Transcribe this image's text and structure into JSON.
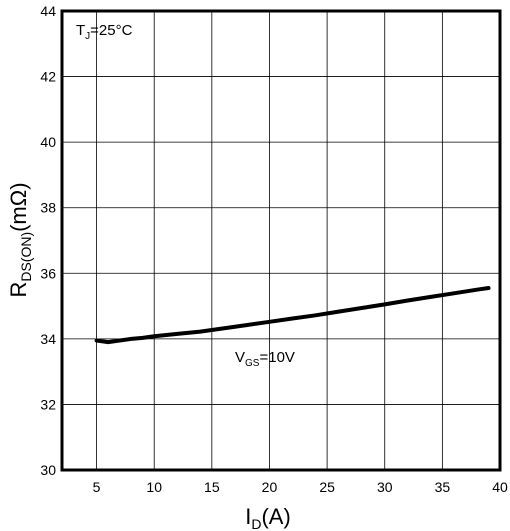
{
  "chart_data": {
    "type": "line",
    "x_label_main": "I",
    "x_label_sub": "D",
    "x_label_unit": "(A)",
    "y_label_main": "R",
    "y_label_sub": "DS(ON)",
    "y_label_unit": "(mΩ)",
    "xlim": [
      2,
      40
    ],
    "ylim": [
      30,
      44
    ],
    "x_ticks": [
      5,
      10,
      15,
      20,
      25,
      30,
      35,
      40
    ],
    "y_ticks": [
      30,
      32,
      34,
      36,
      38,
      40,
      42,
      44
    ],
    "x_tick_labels": [
      "5",
      "10",
      "15",
      "20",
      "25",
      "30",
      "35",
      "40"
    ],
    "y_tick_labels": [
      "30",
      "32",
      "34",
      "36",
      "38",
      "40",
      "42",
      "44"
    ],
    "x_grid": [
      5,
      10,
      15,
      20,
      25,
      30,
      35
    ],
    "y_grid": [
      32,
      34,
      36,
      38,
      40,
      42
    ],
    "grid": true,
    "annotations": {
      "tj": {
        "main": "T",
        "sub": "J",
        "rest": "=25°C"
      },
      "vgs": {
        "main": "V",
        "sub": "GS",
        "rest": "=10V"
      }
    },
    "series": [
      {
        "x": [
          5,
          6,
          7,
          8,
          9,
          10,
          12,
          14,
          16,
          18,
          20,
          22,
          24,
          26,
          28,
          30,
          32,
          34,
          36,
          38,
          39
        ],
        "y": [
          33.95,
          33.9,
          33.95,
          34.0,
          34.03,
          34.08,
          34.15,
          34.22,
          34.32,
          34.42,
          34.52,
          34.62,
          34.72,
          34.83,
          34.94,
          35.05,
          35.17,
          35.28,
          35.39,
          35.5,
          35.55
        ]
      }
    ]
  }
}
